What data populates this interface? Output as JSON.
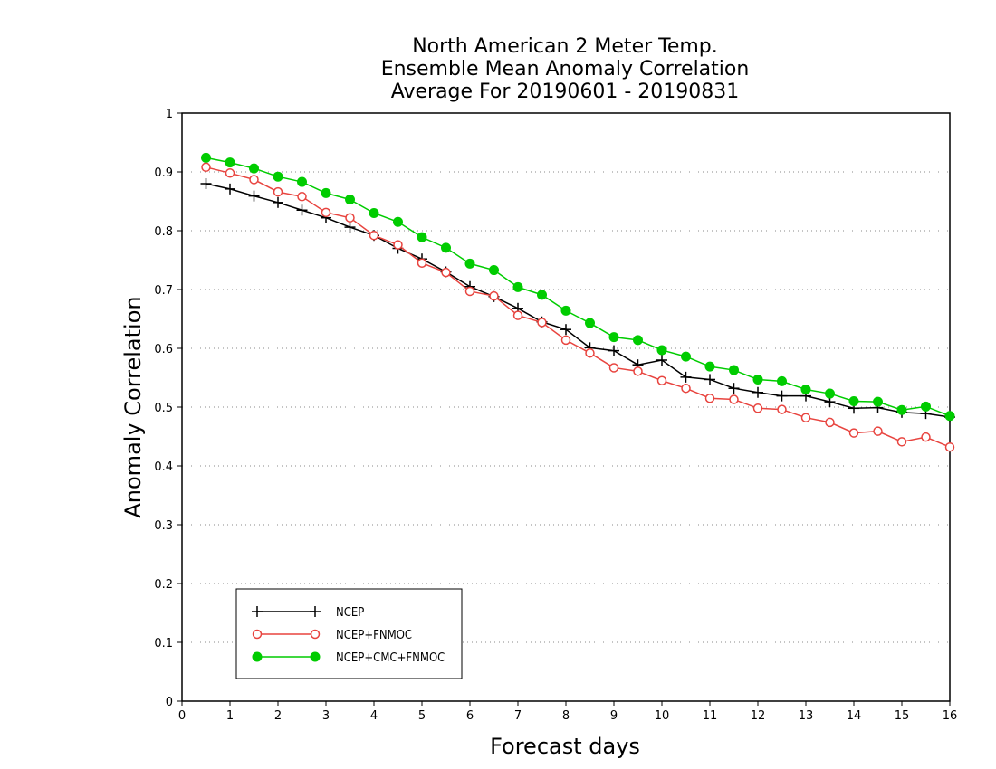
{
  "chart_data": {
    "type": "line",
    "title": [
      "North American 2 Meter Temp.",
      "Ensemble Mean Anomaly Correlation",
      "Average For 20190601 - 20190831"
    ],
    "xlabel": "Forecast days",
    "ylabel": "Anomaly Correlation",
    "xlim": [
      0,
      16
    ],
    "ylim": [
      0,
      1
    ],
    "xticks": [
      "0",
      "1",
      "2",
      "3",
      "4",
      "5",
      "6",
      "7",
      "8",
      "9",
      "10",
      "11",
      "12",
      "13",
      "14",
      "15",
      "16"
    ],
    "yticks": [
      "0",
      "0.1",
      "0.2",
      "0.3",
      "0.4",
      "0.5",
      "0.6",
      "0.7",
      "0.8",
      "0.9",
      "1"
    ],
    "grid": true,
    "legend_position": "bottom-left",
    "x": [
      0.5,
      1,
      1.5,
      2,
      2.5,
      3,
      3.5,
      4,
      4.5,
      5,
      5.5,
      6,
      6.5,
      7,
      7.5,
      8,
      8.5,
      9,
      9.5,
      10,
      10.5,
      11,
      11.5,
      12,
      12.5,
      13,
      13.5,
      14,
      14.5,
      15,
      15.5,
      16
    ],
    "series": [
      {
        "name": "NCEP",
        "color": "#000000",
        "marker": "plus",
        "values": [
          0.88,
          0.871,
          0.859,
          0.848,
          0.835,
          0.822,
          0.806,
          0.792,
          0.77,
          0.752,
          0.73,
          0.705,
          0.688,
          0.668,
          0.645,
          0.632,
          0.601,
          0.596,
          0.572,
          0.58,
          0.551,
          0.547,
          0.532,
          0.525,
          0.519,
          0.519,
          0.509,
          0.498,
          0.499,
          0.491,
          0.489,
          0.483
        ]
      },
      {
        "name": "NCEP+FNMOC",
        "color": "#e8443f",
        "marker": "open-circle",
        "values": [
          0.908,
          0.898,
          0.887,
          0.866,
          0.858,
          0.831,
          0.822,
          0.792,
          0.776,
          0.745,
          0.729,
          0.697,
          0.689,
          0.656,
          0.644,
          0.614,
          0.592,
          0.567,
          0.561,
          0.545,
          0.532,
          0.515,
          0.513,
          0.498,
          0.496,
          0.482,
          0.474,
          0.456,
          0.459,
          0.441,
          0.449,
          0.432
        ]
      },
      {
        "name": "NCEP+CMC+FNMOC",
        "color": "#00cc00",
        "marker": "filled-circle",
        "values": [
          0.924,
          0.916,
          0.906,
          0.892,
          0.883,
          0.864,
          0.853,
          0.83,
          0.815,
          0.789,
          0.771,
          0.744,
          0.733,
          0.704,
          0.691,
          0.664,
          0.643,
          0.619,
          0.614,
          0.597,
          0.586,
          0.569,
          0.563,
          0.547,
          0.544,
          0.53,
          0.523,
          0.51,
          0.509,
          0.495,
          0.501,
          0.485
        ]
      }
    ]
  }
}
